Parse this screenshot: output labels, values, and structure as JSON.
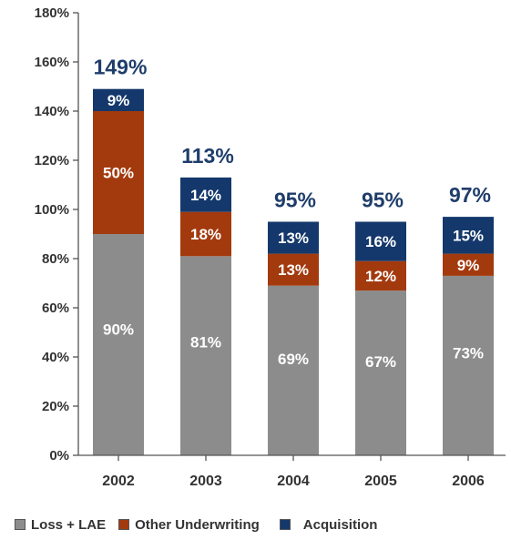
{
  "chart_data": {
    "type": "bar",
    "stacked": true,
    "categories": [
      "2002",
      "2003",
      "2004",
      "2005",
      "2006"
    ],
    "series": [
      {
        "name": "Loss + LAE",
        "values": [
          90,
          81,
          69,
          67,
          73
        ],
        "labels": [
          "90%",
          "81%",
          "69%",
          "67%",
          "73%"
        ],
        "color": "#8c8c8c"
      },
      {
        "name": "Other Underwriting",
        "values": [
          50,
          18,
          13,
          12,
          9
        ],
        "labels": [
          "50%",
          "18%",
          "13%",
          "12%",
          "9%"
        ],
        "color": "#a33a0e"
      },
      {
        "name": "Acquisition",
        "values": [
          9,
          14,
          13,
          16,
          15
        ],
        "labels": [
          "9%",
          "14%",
          "13%",
          "16%",
          "15%"
        ],
        "color": "#14386b"
      }
    ],
    "totals": [
      149,
      113,
      95,
      95,
      97
    ],
    "total_labels": [
      "149%",
      "113%",
      "95%",
      "95%",
      "97%"
    ],
    "total_label_color": "#1f3d6b",
    "ylim": [
      0,
      180
    ],
    "yticks": [
      0,
      20,
      40,
      60,
      80,
      100,
      120,
      140,
      160,
      180
    ],
    "ytick_labels": [
      "0%",
      "20%",
      "40%",
      "60%",
      "80%",
      "100%",
      "120%",
      "140%",
      "160%",
      "180%"
    ],
    "legend_position": "bottom",
    "grid": false,
    "title": "",
    "xlabel": "",
    "ylabel": ""
  }
}
